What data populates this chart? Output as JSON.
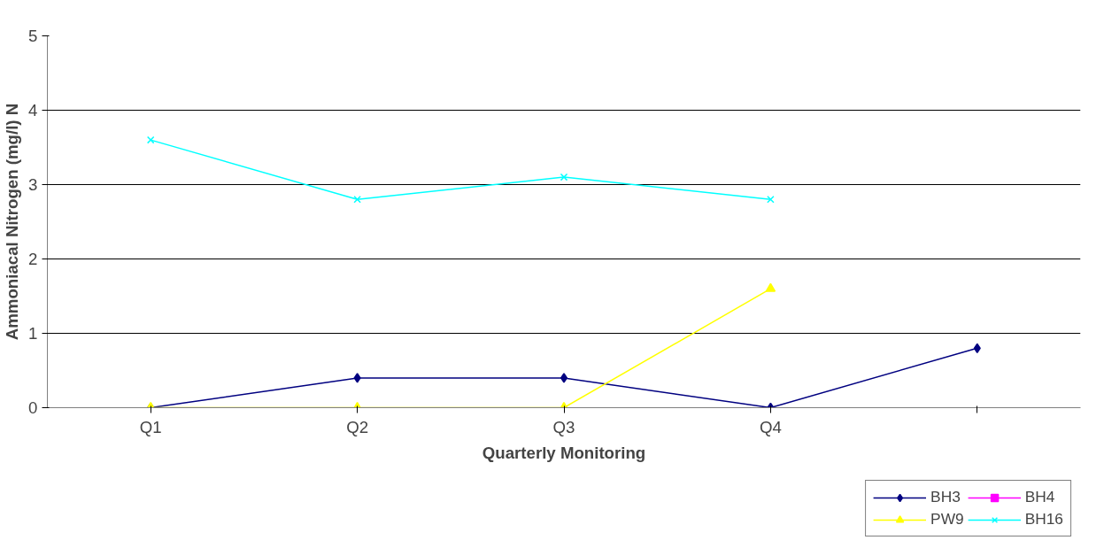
{
  "chart_data": {
    "type": "line",
    "xlabel": "Quarterly Monitoring",
    "ylabel": "Ammoniacal Nitrogen (mg/l) N",
    "categories": [
      "Q1",
      "Q2",
      "Q3",
      "Q4",
      null
    ],
    "ylim": [
      0,
      5
    ],
    "yticks": [
      0,
      1,
      2,
      3,
      4,
      5
    ],
    "grid": "y",
    "legend": "bottom right",
    "series": [
      {
        "name": "BH3",
        "color": "#000080",
        "marker": "diamond",
        "values": [
          0,
          0.4,
          0.4,
          0,
          0.8
        ]
      },
      {
        "name": "BH4",
        "color": "#ff00ff",
        "marker": "square",
        "values": [
          null,
          null,
          null,
          null,
          null
        ]
      },
      {
        "name": "PW9",
        "color": "#ffff00",
        "marker": "triangle",
        "values": [
          0,
          0,
          0,
          1.6,
          null
        ]
      },
      {
        "name": "BH16",
        "color": "#00ffff",
        "marker": "cross",
        "values": [
          3.6,
          2.8,
          3.1,
          2.8,
          null
        ]
      }
    ]
  }
}
